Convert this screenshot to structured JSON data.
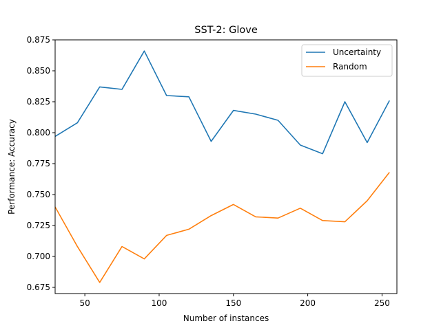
{
  "chart_data": {
    "type": "line",
    "title": "SST-2: Glove",
    "xlabel": "Number of instances",
    "ylabel": "Performance: Accuracy",
    "xlim": [
      30,
      260
    ],
    "ylim": [
      0.67,
      0.875
    ],
    "xticks": [
      50,
      100,
      150,
      200,
      250
    ],
    "yticks": [
      0.675,
      0.7,
      0.725,
      0.75,
      0.775,
      0.8,
      0.825,
      0.85,
      0.875
    ],
    "grid": false,
    "legend_position": "top-right",
    "x": [
      30,
      45,
      60,
      75,
      90,
      105,
      120,
      135,
      150,
      165,
      180,
      195,
      210,
      225,
      240,
      255
    ],
    "series": [
      {
        "name": "Uncertainty",
        "color": "#1f77b4",
        "values": [
          0.797,
          0.808,
          0.837,
          0.835,
          0.866,
          0.83,
          0.829,
          0.793,
          0.818,
          0.815,
          0.81,
          0.79,
          0.783,
          0.825,
          0.792,
          0.826
        ]
      },
      {
        "name": "Random",
        "color": "#ff7f0e",
        "values": [
          0.74,
          0.708,
          0.679,
          0.708,
          0.698,
          0.717,
          0.722,
          0.733,
          0.742,
          0.732,
          0.731,
          0.739,
          0.729,
          0.728,
          0.745,
          0.768
        ]
      }
    ]
  }
}
